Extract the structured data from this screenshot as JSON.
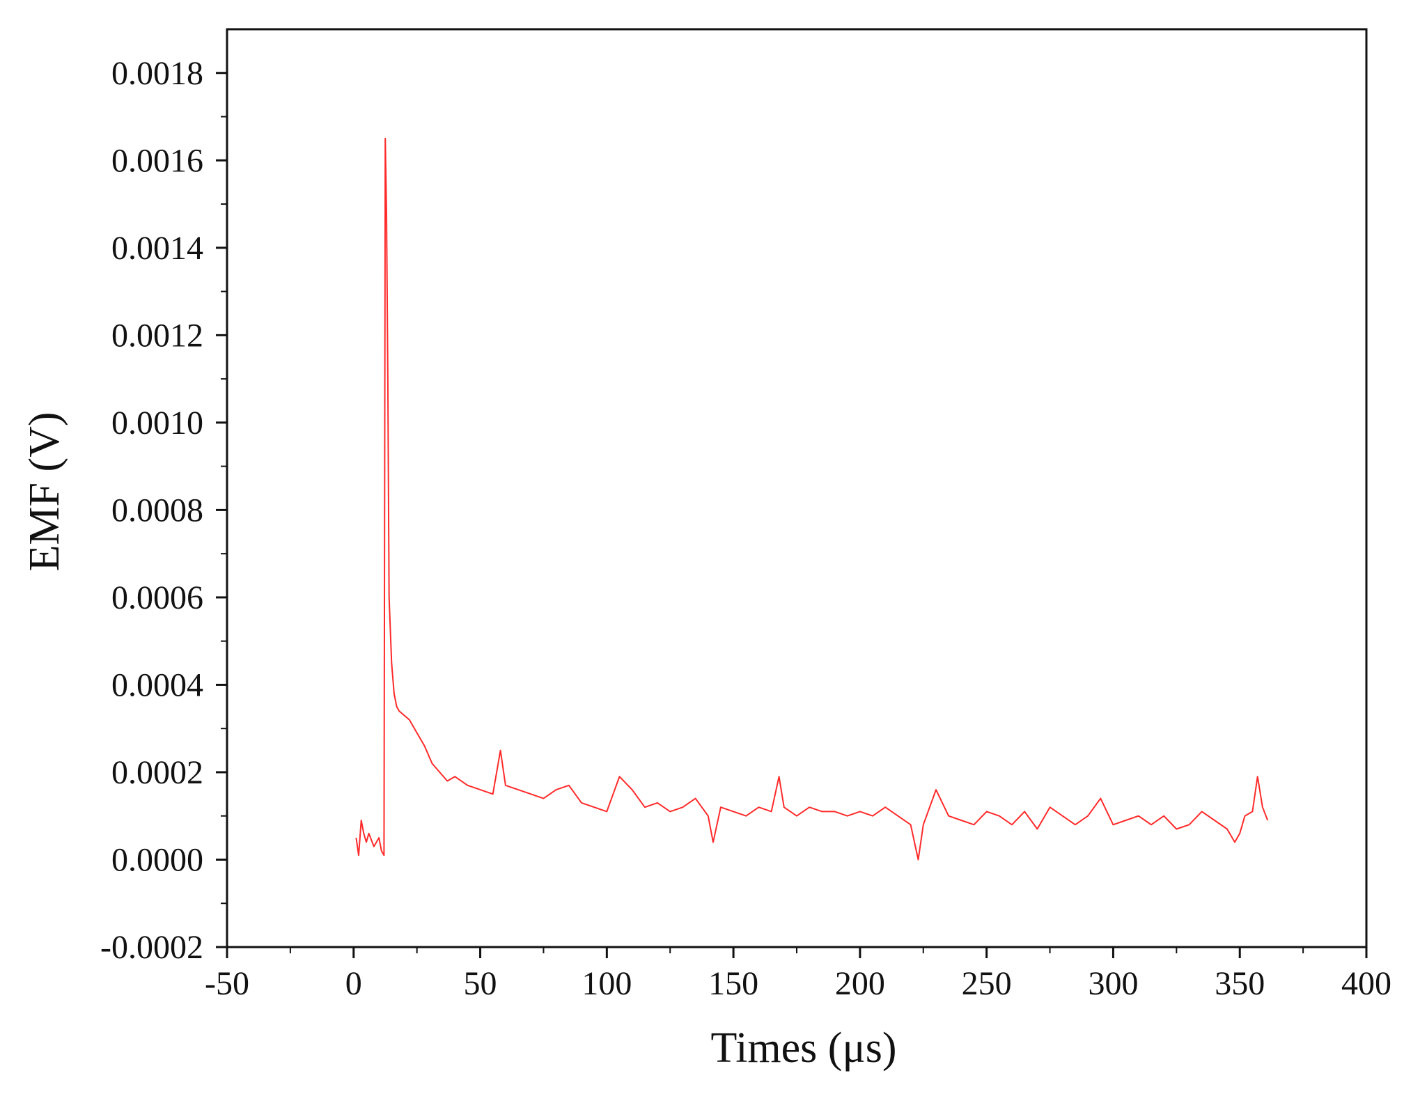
{
  "chart_data": {
    "type": "line",
    "title": "",
    "xlabel": "Times (μs)",
    "ylabel": "EMF (V)",
    "xlim": [
      -50,
      400
    ],
    "ylim": [
      -0.0002,
      0.0019
    ],
    "x_ticks": [
      -50,
      0,
      50,
      100,
      150,
      200,
      250,
      300,
      350,
      400
    ],
    "x_tick_labels": [
      "-50",
      "0",
      "50",
      "100",
      "150",
      "200",
      "250",
      "300",
      "350",
      "400"
    ],
    "y_ticks": [
      -0.0002,
      0.0,
      0.0002,
      0.0004,
      0.0006,
      0.0008,
      0.001,
      0.0012,
      0.0014,
      0.0016,
      0.0018
    ],
    "y_tick_labels": [
      "-0.0002",
      "0.0000",
      "0.0002",
      "0.0004",
      "0.0006",
      "0.0008",
      "0.0010",
      "0.0012",
      "0.0014",
      "0.0016",
      "0.0018"
    ],
    "grid": false,
    "legend": "none",
    "series": [
      {
        "color": "#ff2a2a",
        "x": [
          1,
          2,
          3,
          4,
          5,
          6,
          8,
          10,
          11,
          12,
          12.5,
          13,
          13.5,
          14,
          15,
          16,
          17,
          18,
          20,
          22,
          25,
          28,
          31,
          34,
          37,
          40,
          45,
          50,
          55,
          58,
          60,
          65,
          70,
          75,
          80,
          85,
          90,
          95,
          100,
          105,
          110,
          115,
          120,
          125,
          130,
          135,
          140,
          142,
          145,
          150,
          155,
          160,
          165,
          168,
          170,
          175,
          180,
          185,
          190,
          195,
          200,
          205,
          210,
          215,
          220,
          223,
          225,
          230,
          235,
          240,
          245,
          250,
          255,
          260,
          265,
          270,
          275,
          280,
          285,
          290,
          295,
          300,
          305,
          310,
          315,
          320,
          325,
          330,
          335,
          340,
          345,
          348,
          350,
          352,
          355,
          357,
          359,
          361
        ],
        "y": [
          5e-05,
          1e-05,
          9e-05,
          6e-05,
          4e-05,
          6e-05,
          3e-05,
          5e-05,
          2e-05,
          1e-05,
          0.00165,
          0.00148,
          0.0011,
          0.0006,
          0.00045,
          0.00038,
          0.00035,
          0.00034,
          0.00033,
          0.00032,
          0.00029,
          0.00026,
          0.00022,
          0.0002,
          0.00018,
          0.00019,
          0.00017,
          0.00016,
          0.00015,
          0.00025,
          0.00017,
          0.00016,
          0.00015,
          0.00014,
          0.00016,
          0.00017,
          0.00013,
          0.00012,
          0.00011,
          0.00019,
          0.00016,
          0.00012,
          0.00013,
          0.00011,
          0.00012,
          0.00014,
          0.0001,
          4e-05,
          0.00012,
          0.00011,
          0.0001,
          0.00012,
          0.00011,
          0.00019,
          0.00012,
          0.0001,
          0.00012,
          0.00011,
          0.00011,
          0.0001,
          0.00011,
          0.0001,
          0.00012,
          0.0001,
          8e-05,
          0.0,
          8e-05,
          0.00016,
          0.0001,
          9e-05,
          8e-05,
          0.00011,
          0.0001,
          8e-05,
          0.00011,
          7e-05,
          0.00012,
          0.0001,
          8e-05,
          0.0001,
          0.00014,
          8e-05,
          9e-05,
          0.0001,
          8e-05,
          0.0001,
          7e-05,
          8e-05,
          0.00011,
          9e-05,
          7e-05,
          4e-05,
          6e-05,
          0.0001,
          0.00011,
          0.00019,
          0.00012,
          9e-05
        ]
      }
    ]
  }
}
